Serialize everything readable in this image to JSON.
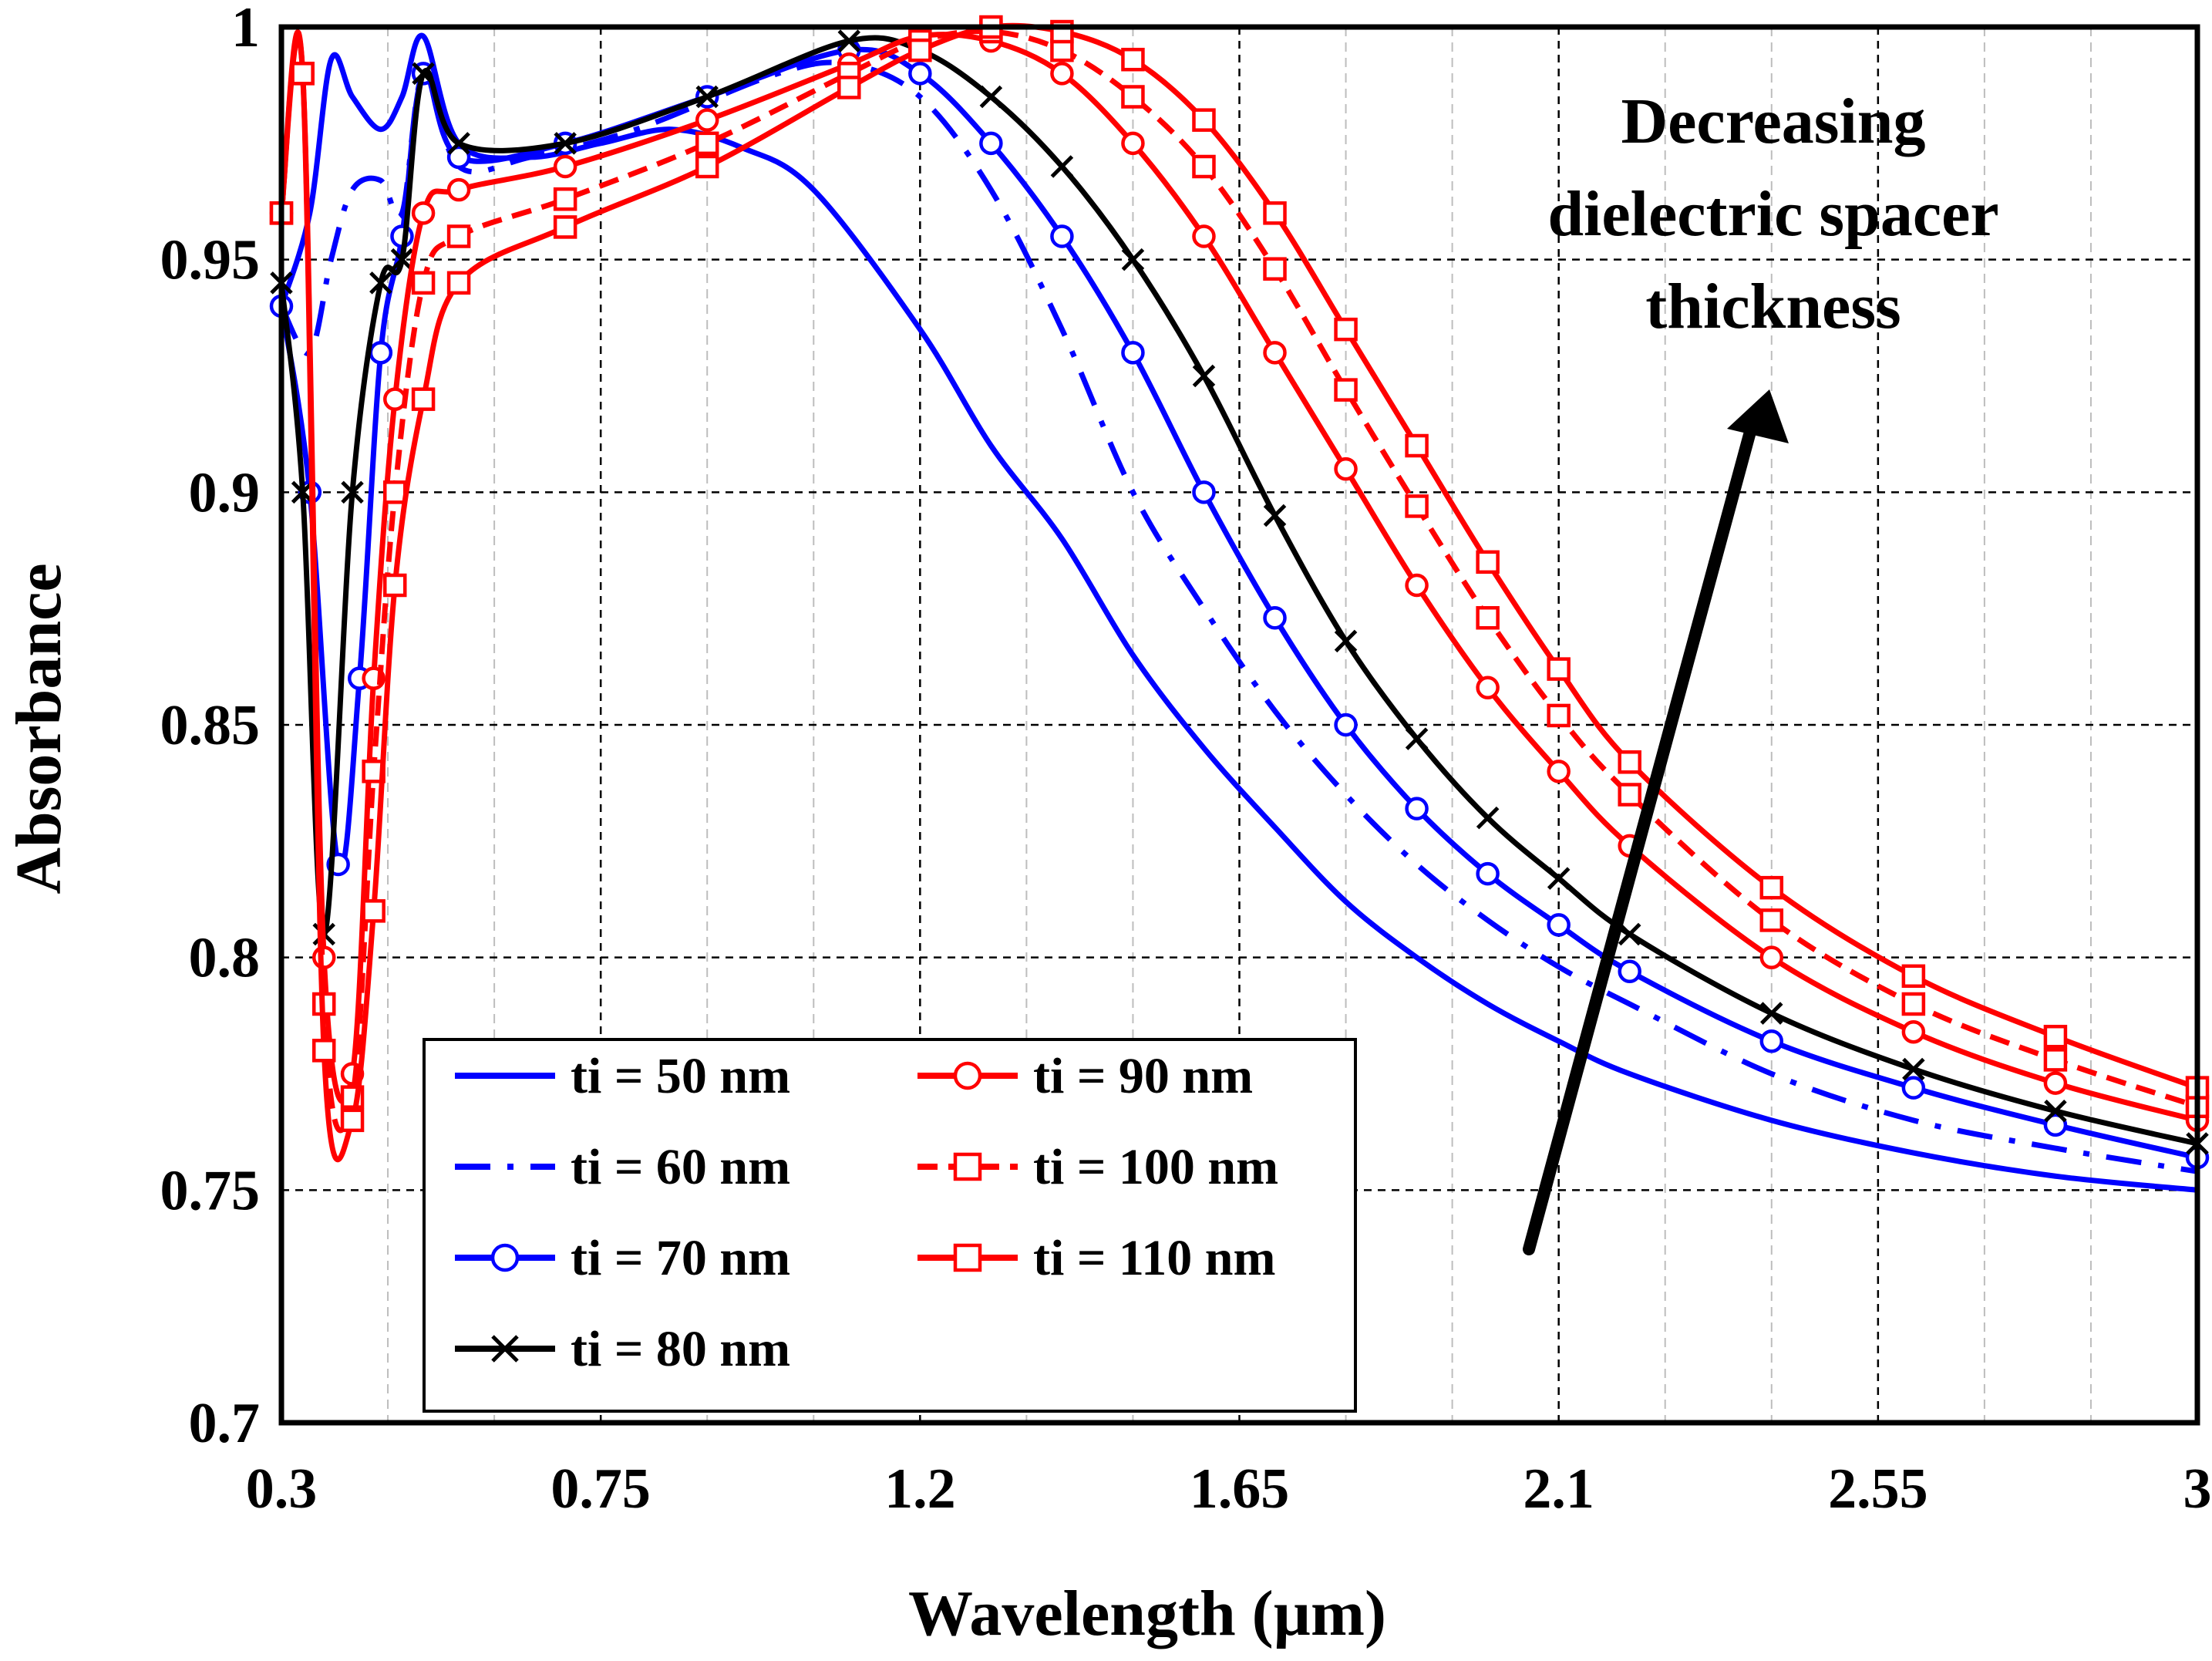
{
  "chart_data": {
    "type": "line",
    "title": "",
    "xlabel": "Wavelength (µm)",
    "ylabel": "Absorbance",
    "xlim": [
      0.3,
      3.0
    ],
    "ylim": [
      0.7,
      1.0
    ],
    "x_ticks": [
      0.3,
      0.75,
      1.2,
      1.65,
      2.1,
      2.55,
      3.0
    ],
    "x_tick_labels": [
      "0.3",
      "0.75",
      "1.2",
      "1.65",
      "2.1",
      "2.55",
      "3"
    ],
    "y_ticks": [
      0.7,
      0.75,
      0.8,
      0.85,
      0.9,
      0.95,
      1.0
    ],
    "y_tick_labels": [
      "0.7",
      "0.75",
      "0.8",
      "0.85",
      "0.9",
      "0.95",
      "1"
    ],
    "grid": true,
    "legend_position": "bottom-left",
    "annotation": {
      "lines": [
        "Decreasing",
        "dielectric spacer",
        "thickness"
      ],
      "arrow": "pointing up-right"
    },
    "series": [
      {
        "name": "ti = 50 nm",
        "color": "#0000ff",
        "style": "solid",
        "marker": "none",
        "x": [
          0.3,
          0.34,
          0.37,
          0.4,
          0.44,
          0.47,
          0.5,
          0.55,
          0.65,
          0.75,
          0.85,
          0.95,
          1.05,
          1.2,
          1.3,
          1.4,
          1.5,
          1.6,
          1.7,
          1.8,
          1.9,
          2.0,
          2.1,
          2.2,
          2.4,
          2.6,
          2.8,
          3.0
        ],
        "y": [
          0.94,
          0.96,
          0.993,
          0.985,
          0.978,
          0.985,
          0.998,
          0.975,
          0.972,
          0.975,
          0.978,
          0.974,
          0.965,
          0.935,
          0.91,
          0.89,
          0.865,
          0.845,
          0.828,
          0.812,
          0.8,
          0.79,
          0.782,
          0.775,
          0.765,
          0.758,
          0.753,
          0.75
        ]
      },
      {
        "name": "ti = 60 nm",
        "color": "#0000ff",
        "style": "dashdot",
        "marker": "none",
        "x": [
          0.3,
          0.34,
          0.37,
          0.4,
          0.44,
          0.47,
          0.5,
          0.55,
          0.65,
          0.8,
          1.0,
          1.1,
          1.2,
          1.3,
          1.4,
          1.5,
          1.6,
          1.7,
          1.8,
          1.9,
          2.0,
          2.1,
          2.2,
          2.4,
          2.6,
          2.8,
          3.0
        ],
        "y": [
          0.94,
          0.93,
          0.95,
          0.965,
          0.967,
          0.96,
          0.99,
          0.97,
          0.972,
          0.978,
          0.99,
          0.992,
          0.985,
          0.965,
          0.935,
          0.9,
          0.875,
          0.853,
          0.835,
          0.82,
          0.808,
          0.798,
          0.79,
          0.775,
          0.765,
          0.759,
          0.754
        ]
      },
      {
        "name": "ti = 70 nm",
        "color": "#0000ff",
        "style": "solid",
        "marker": "circle",
        "x": [
          0.3,
          0.34,
          0.38,
          0.41,
          0.44,
          0.47,
          0.5,
          0.55,
          0.7,
          0.9,
          1.1,
          1.2,
          1.3,
          1.4,
          1.5,
          1.6,
          1.7,
          1.8,
          1.9,
          2.0,
          2.1,
          2.2,
          2.4,
          2.6,
          2.8,
          3.0
        ],
        "y": [
          0.94,
          0.9,
          0.82,
          0.86,
          0.93,
          0.955,
          0.99,
          0.972,
          0.975,
          0.985,
          0.995,
          0.99,
          0.975,
          0.955,
          0.93,
          0.9,
          0.873,
          0.85,
          0.832,
          0.818,
          0.807,
          0.797,
          0.782,
          0.772,
          0.764,
          0.757
        ]
      },
      {
        "name": "ti = 80 nm",
        "color": "#000000",
        "style": "solid",
        "marker": "x",
        "x": [
          0.3,
          0.33,
          0.36,
          0.4,
          0.44,
          0.47,
          0.5,
          0.55,
          0.7,
          0.9,
          1.1,
          1.2,
          1.3,
          1.4,
          1.5,
          1.6,
          1.7,
          1.8,
          1.9,
          2.0,
          2.1,
          2.2,
          2.4,
          2.6,
          2.8,
          3.0
        ],
        "y": [
          0.945,
          0.9,
          0.805,
          0.9,
          0.945,
          0.95,
          0.99,
          0.975,
          0.975,
          0.985,
          0.997,
          0.995,
          0.985,
          0.97,
          0.95,
          0.925,
          0.895,
          0.868,
          0.847,
          0.83,
          0.817,
          0.805,
          0.788,
          0.776,
          0.767,
          0.76
        ]
      },
      {
        "name": "ti = 90 nm",
        "color": "#ff0000",
        "style": "solid",
        "marker": "circle",
        "x": [
          0.3,
          0.33,
          0.36,
          0.4,
          0.43,
          0.46,
          0.5,
          0.55,
          0.7,
          0.9,
          1.1,
          1.2,
          1.3,
          1.4,
          1.5,
          1.6,
          1.7,
          1.8,
          1.9,
          2.0,
          2.1,
          2.2,
          2.4,
          2.6,
          2.8,
          3.0
        ],
        "y": [
          0.96,
          0.99,
          0.8,
          0.775,
          0.86,
          0.92,
          0.96,
          0.965,
          0.97,
          0.98,
          0.992,
          0.998,
          0.997,
          0.99,
          0.975,
          0.955,
          0.93,
          0.905,
          0.88,
          0.858,
          0.84,
          0.824,
          0.8,
          0.784,
          0.773,
          0.765
        ]
      },
      {
        "name": "ti = 100 nm",
        "color": "#ff0000",
        "style": "dash",
        "marker": "square",
        "x": [
          0.3,
          0.33,
          0.36,
          0.4,
          0.43,
          0.46,
          0.5,
          0.55,
          0.7,
          0.9,
          1.1,
          1.2,
          1.3,
          1.4,
          1.5,
          1.6,
          1.7,
          1.8,
          1.9,
          2.0,
          2.1,
          2.2,
          2.4,
          2.6,
          2.8,
          3.0
        ],
        "y": [
          0.96,
          0.99,
          0.79,
          0.77,
          0.84,
          0.9,
          0.945,
          0.955,
          0.963,
          0.975,
          0.99,
          0.997,
          0.999,
          0.995,
          0.985,
          0.97,
          0.948,
          0.922,
          0.897,
          0.873,
          0.852,
          0.835,
          0.808,
          0.79,
          0.778,
          0.768
        ]
      },
      {
        "name": "ti = 110 nm",
        "color": "#ff0000",
        "style": "solid",
        "marker": "square",
        "x": [
          0.3,
          0.33,
          0.36,
          0.4,
          0.43,
          0.46,
          0.5,
          0.55,
          0.7,
          0.9,
          1.1,
          1.2,
          1.3,
          1.4,
          1.5,
          1.6,
          1.7,
          1.8,
          1.9,
          2.0,
          2.1,
          2.2,
          2.4,
          2.6,
          2.8,
          3.0
        ],
        "y": [
          0.96,
          0.99,
          0.78,
          0.765,
          0.81,
          0.88,
          0.92,
          0.945,
          0.957,
          0.97,
          0.987,
          0.995,
          1.0,
          0.999,
          0.993,
          0.98,
          0.96,
          0.935,
          0.91,
          0.885,
          0.862,
          0.842,
          0.815,
          0.796,
          0.783,
          0.772
        ]
      }
    ]
  }
}
